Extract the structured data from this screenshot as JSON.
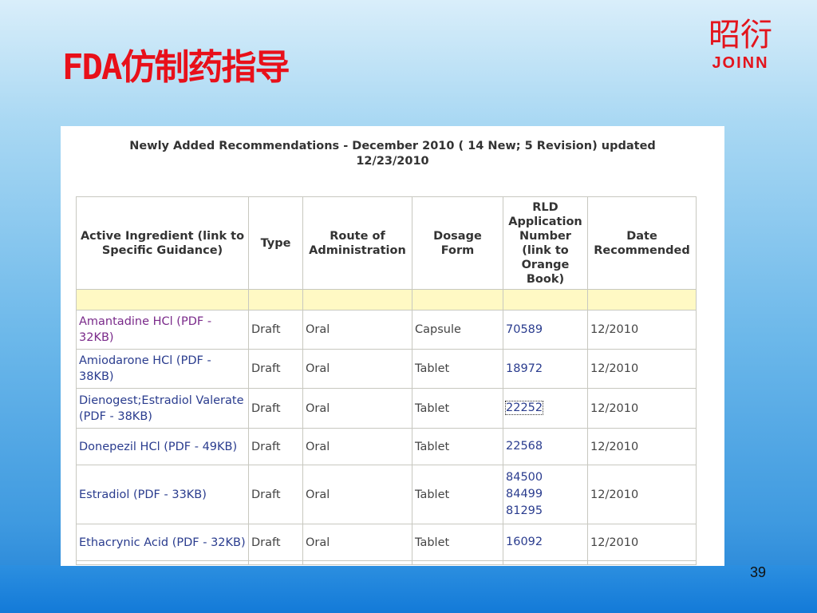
{
  "slide": {
    "title": "FDA仿制药指导",
    "page_number": "39",
    "logo_cn": "昭衍",
    "logo_en": "JOINN"
  },
  "caption": "Newly Added Recommendations - December 2010 ( 14 New; 5 Revision) updated 12/23/2010",
  "table": {
    "headers": [
      "Active Ingredient (link to Specific Guidance)",
      "Type",
      "Route of Administration",
      "Dosage Form",
      "RLD Application Number (link to Orange Book)",
      "Date Recommended"
    ],
    "rows": [
      {
        "ingredient": "Amantadine HCl (PDF - 32KB)",
        "type": "Draft",
        "route": "Oral",
        "form": "Capsule",
        "rld": "70589",
        "date": "12/2010"
      },
      {
        "ingredient": "Amiodarone HCl (PDF - 38KB)",
        "type": "Draft",
        "route": "Oral",
        "form": "Tablet",
        "rld": "18972",
        "date": "12/2010"
      },
      {
        "ingredient": "Dienogest;Estradiol Valerate (PDF - 38KB)",
        "type": "Draft",
        "route": "Oral",
        "form": "Tablet",
        "rld": "22252",
        "date": "12/2010"
      },
      {
        "ingredient": "Donepezil HCl (PDF - 49KB)",
        "type": "Draft",
        "route": "Oral",
        "form": "Tablet",
        "rld": "22568",
        "date": "12/2010"
      },
      {
        "ingredient": "Estradiol (PDF - 33KB)",
        "type": "Draft",
        "route": "Oral",
        "form": "Tablet",
        "rld": "84500\n84499\n81295",
        "date": "12/2010"
      },
      {
        "ingredient": "Ethacrynic Acid (PDF - 32KB)",
        "type": "Draft",
        "route": "Oral",
        "form": "Tablet",
        "rld": "16092",
        "date": "12/2010"
      }
    ]
  }
}
